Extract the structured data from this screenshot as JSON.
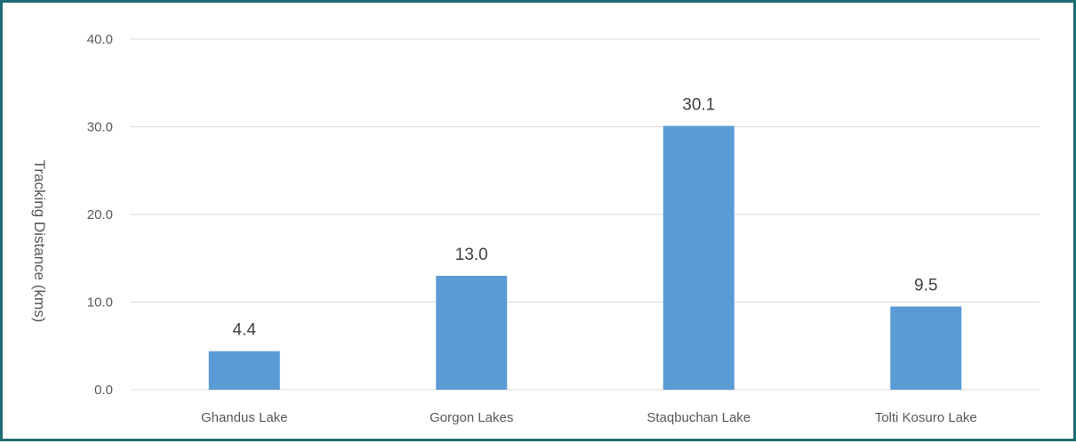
{
  "chart_data": {
    "type": "bar",
    "title": "",
    "xlabel": "",
    "ylabel": "Tracking Distance (kms)",
    "categories": [
      "Ghandus Lake",
      "Gorgon Lakes",
      "Staqbuchan Lake",
      "Tolti Kosuro Lake"
    ],
    "values": [
      4.4,
      13.0,
      30.1,
      9.5
    ],
    "data_labels": [
      "4.4",
      "13.0",
      "30.1",
      "9.5"
    ],
    "ylim": [
      0,
      40
    ],
    "yticks": [
      0,
      10,
      20,
      30,
      40
    ],
    "ytick_labels": [
      "0.0",
      "10.0",
      "20.0",
      "30.0",
      "40.0"
    ],
    "grid": true,
    "legend": "none",
    "colors": {
      "bar": "#5b9bd5",
      "frame": "#1f6b73",
      "grid": "#d9d9d9"
    }
  }
}
